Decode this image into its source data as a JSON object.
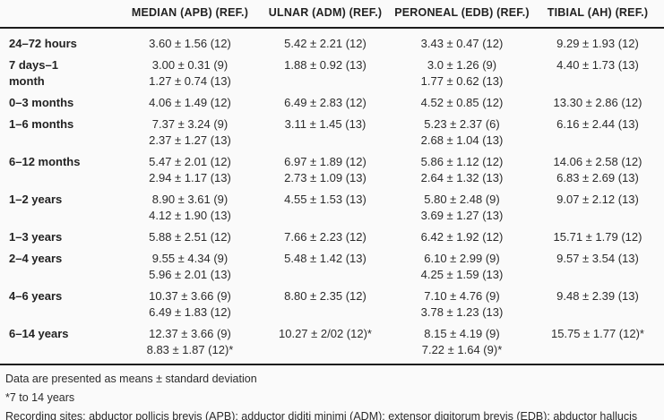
{
  "table": {
    "columns": [
      {
        "key": "median",
        "label": "MEDIAN (APB) (REF.)"
      },
      {
        "key": "ulnar",
        "label": "ULNAR (ADM) (REF.)"
      },
      {
        "key": "peroneal",
        "label": "PERONEAL (EDB) (REF.)"
      },
      {
        "key": "tibial",
        "label": "TIBIAL (AH) (REF.)"
      }
    ],
    "rows": [
      {
        "label": "24–72 hours",
        "label_lines": [
          "24–72 hours"
        ],
        "cells": [
          [
            "3.60 ± 1.56 (12)"
          ],
          [
            "5.42 ± 2.21 (12)"
          ],
          [
            "3.43 ± 0.47 (12)"
          ],
          [
            "9.29 ± 1.93 (12)"
          ]
        ]
      },
      {
        "label": "7 days–1 month",
        "label_lines": [
          "7 days–1",
          "month"
        ],
        "cells": [
          [
            "3.00 ± 0.31 (9)",
            "1.27 ± 0.74 (13)"
          ],
          [
            "1.88 ± 0.92 (13)"
          ],
          [
            "3.0 ± 1.26 (9)",
            "1.77 ± 0.62 (13)"
          ],
          [
            "4.40 ± 1.73 (13)"
          ]
        ]
      },
      {
        "label": "0–3 months",
        "label_lines": [
          "0–3 months"
        ],
        "cells": [
          [
            "4.06 ± 1.49 (12)"
          ],
          [
            "6.49 ± 2.83 (12)"
          ],
          [
            "4.52 ± 0.85 (12)"
          ],
          [
            "13.30 ± 2.86 (12)"
          ]
        ]
      },
      {
        "label": "1–6 months",
        "label_lines": [
          "1–6 months"
        ],
        "cells": [
          [
            "7.37 ± 3.24 (9)",
            "2.37 ± 1.27 (13)"
          ],
          [
            "3.11 ± 1.45 (13)"
          ],
          [
            "5.23 ± 2.37 (6)",
            "2.68 ± 1.04 (13)"
          ],
          [
            "6.16 ± 2.44 (13)"
          ]
        ]
      },
      {
        "label": "6–12 months",
        "label_lines": [
          "6–12 months"
        ],
        "cells": [
          [
            "5.47 ± 2.01 (12)",
            "2.94 ± 1.17 (13)"
          ],
          [
            "6.97 ± 1.89 (12)",
            "2.73 ± 1.09 (13)"
          ],
          [
            "5.86 ± 1.12 (12)",
            "2.64 ± 1.32 (13)"
          ],
          [
            "14.06 ± 2.58 (12)",
            "6.83 ± 2.69 (13)"
          ]
        ]
      },
      {
        "label": "1–2 years",
        "label_lines": [
          "1–2 years"
        ],
        "cells": [
          [
            "8.90 ± 3.61 (9)",
            "4.12 ± 1.90 (13)"
          ],
          [
            "4.55 ± 1.53 (13)"
          ],
          [
            "5.80 ± 2.48 (9)",
            "3.69 ± 1.27 (13)"
          ],
          [
            "9.07 ± 2.12 (13)"
          ]
        ]
      },
      {
        "label": "1–3 years",
        "label_lines": [
          "1–3 years"
        ],
        "cells": [
          [
            "5.88 ± 2.51 (12)"
          ],
          [
            "7.66 ± 2.23 (12)"
          ],
          [
            "6.42 ± 1.92 (12)"
          ],
          [
            "15.71 ± 1.79 (12)"
          ]
        ]
      },
      {
        "label": "2–4 years",
        "label_lines": [
          "2–4 years"
        ],
        "cells": [
          [
            "9.55 ± 4.34 (9)",
            "5.96 ± 2.01 (13)"
          ],
          [
            "5.48 ± 1.42 (13)"
          ],
          [
            "6.10 ± 2.99 (9)",
            "4.25 ± 1.59 (13)"
          ],
          [
            "9.57 ± 3.54 (13)"
          ]
        ]
      },
      {
        "label": "4–6 years",
        "label_lines": [
          "4–6 years"
        ],
        "cells": [
          [
            "10.37 ± 3.66 (9)",
            "6.49 ± 1.83 (12)"
          ],
          [
            "8.80 ± 2.35 (12)"
          ],
          [
            "7.10 ± 4.76 (9)",
            "3.78 ± 1.23 (13)"
          ],
          [
            "9.48 ± 2.39 (13)"
          ]
        ]
      },
      {
        "label": "6–14 years",
        "label_lines": [
          "6–14 years"
        ],
        "cells": [
          [
            "12.37 ± 3.66 (9)",
            "8.83 ± 1.87 (12)*"
          ],
          [
            "10.27 ± 2/02 (12)*"
          ],
          [
            "8.15 ± 4.19 (9)",
            "7.22 ± 1.64 (9)*"
          ],
          [
            "15.75 ± 1.77 (12)*"
          ]
        ]
      }
    ]
  },
  "footnotes": [
    "Data are presented as means ± standard deviation",
    "*7 to 14 years",
    "Recording sites: abductor pollicis brevis (APB); adductor diditi minimi (ADM); extensor digitorum brevis (EDB); abductor hallucis (AH)."
  ],
  "colors": {
    "background": "#fafafa",
    "text": "#2b2b2b",
    "rule": "#1c1c1c"
  }
}
